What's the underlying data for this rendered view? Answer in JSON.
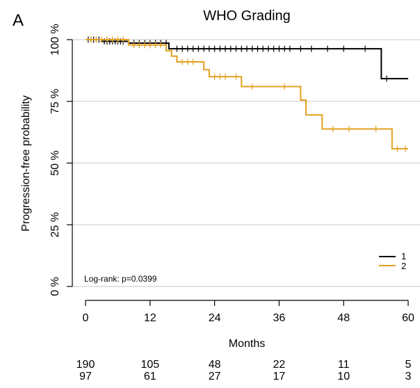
{
  "chart_data": {
    "type": "line",
    "panel_label": "A",
    "title": "WHO Grading",
    "xlabel": "Months",
    "ylabel": "Progression-free probability",
    "xlim": [
      0,
      60
    ],
    "ylim": [
      0,
      100
    ],
    "xticks": [
      0,
      12,
      24,
      36,
      48,
      60
    ],
    "xtick_labels": [
      "0",
      "12",
      "24",
      "36",
      "48",
      "60"
    ],
    "yticks": [
      0,
      25,
      50,
      75,
      100
    ],
    "ytick_labels": [
      "0 %",
      "25 %",
      "50 %",
      "75 %",
      "100 %"
    ],
    "grid": true,
    "legend_position": "bottom-right",
    "annotation": "Log-rank: p=0.0399",
    "series": [
      {
        "name": "1",
        "color": "#000000",
        "steps": [
          [
            0,
            100
          ],
          [
            3,
            99.3
          ],
          [
            8,
            98.6
          ],
          [
            15.5,
            96.3
          ],
          [
            55,
            84.2
          ],
          [
            60,
            84.2
          ]
        ],
        "censor_times": [
          0.5,
          1,
          1.5,
          2,
          2.5,
          3.5,
          4,
          4.5,
          5,
          5.5,
          6,
          6.5,
          7,
          9,
          10,
          11,
          12,
          13,
          14,
          15,
          17,
          18,
          19,
          20,
          21,
          22,
          23,
          24,
          25,
          26,
          27,
          28,
          29,
          30,
          31,
          32,
          33,
          34,
          35,
          36,
          37,
          38,
          40,
          42,
          45,
          48,
          52,
          56
        ]
      },
      {
        "name": "2",
        "color": "#E3A020",
        "steps": [
          [
            0,
            100
          ],
          [
            8,
            97.8
          ],
          [
            15,
            95.5
          ],
          [
            16,
            93.3
          ],
          [
            17,
            91
          ],
          [
            22,
            87.8
          ],
          [
            23,
            85
          ],
          [
            29,
            81
          ],
          [
            40,
            75.5
          ],
          [
            41,
            69.5
          ],
          [
            44,
            63.8
          ],
          [
            57,
            55.8
          ],
          [
            60,
            55.8
          ]
        ],
        "censor_times": [
          1,
          2,
          3,
          4,
          5,
          6,
          7,
          9,
          10,
          11,
          12,
          13,
          14,
          18,
          19,
          20,
          24,
          25,
          26,
          28,
          31,
          37,
          46,
          49,
          54,
          58,
          59.5
        ]
      }
    ],
    "risk_table": {
      "times": [
        0,
        12,
        24,
        36,
        48,
        60
      ],
      "rows": [
        {
          "name": "1",
          "color": "#000000",
          "values": [
            "190",
            "105",
            "48",
            "22",
            "11",
            "5"
          ]
        },
        {
          "name": "2",
          "color": "#E3A020",
          "values": [
            "97",
            "61",
            "27",
            "17",
            "10",
            "3"
          ]
        }
      ]
    }
  }
}
